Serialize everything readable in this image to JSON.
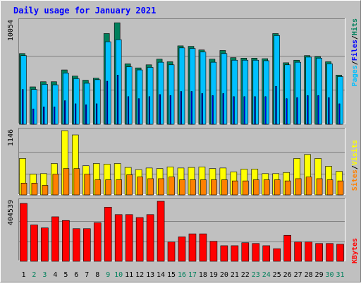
{
  "title": "Daily usage for January 2021",
  "colors": {
    "background": "#c0c0c0",
    "title": "#0000ff",
    "hits": "#00805c",
    "files": "#0000ff",
    "pages": "#00c0ff",
    "visits": "#ffff00",
    "sites": "#ff8000",
    "kbytes": "#ff0000",
    "weekend_label": "#00805c",
    "weekday_label": "#000000"
  },
  "chart_data": [
    {
      "type": "bar",
      "panel": "top",
      "y_max_label": "10054",
      "ylim": [
        0,
        10054
      ],
      "legend": [
        {
          "label": "Pages",
          "color": "#00c0ff"
        },
        {
          "label": "Files",
          "color": "#0000ff"
        },
        {
          "label": "Hits",
          "color": "#00805c"
        }
      ],
      "legend_separator": "/",
      "categories": [
        "1",
        "2",
        "3",
        "4",
        "5",
        "6",
        "7",
        "8",
        "9",
        "10",
        "11",
        "12",
        "13",
        "14",
        "15",
        "16",
        "17",
        "18",
        "19",
        "20",
        "21",
        "22",
        "23",
        "24",
        "25",
        "26",
        "27",
        "28",
        "29",
        "30",
        "31"
      ],
      "series": [
        {
          "name": "Hits",
          "values": [
            6900,
            3650,
            4150,
            4150,
            5300,
            4700,
            4300,
            4500,
            8850,
            9900,
            5900,
            5500,
            5800,
            6350,
            6100,
            7650,
            7600,
            7250,
            6350,
            7200,
            6500,
            6450,
            6450,
            6400,
            8850,
            6000,
            6250,
            6700,
            6600,
            6100,
            4800
          ]
        },
        {
          "name": "Files",
          "values": [
            3400,
            1500,
            1700,
            1700,
            2300,
            2000,
            1900,
            2000,
            4200,
            4800,
            2700,
            2500,
            2700,
            2900,
            2800,
            3200,
            3200,
            3000,
            2800,
            3000,
            2700,
            2700,
            2700,
            2700,
            3700,
            2500,
            2600,
            2800,
            2800,
            2600,
            2000
          ]
        },
        {
          "name": "Pages",
          "values": [
            6700,
            3400,
            3900,
            3850,
            5000,
            4450,
            4000,
            4350,
            8050,
            8250,
            5600,
            5300,
            5550,
            6050,
            5800,
            7450,
            7400,
            7050,
            6050,
            6900,
            6250,
            6250,
            6250,
            6200,
            8650,
            5800,
            6050,
            6550,
            6450,
            5900,
            4650
          ]
        }
      ]
    },
    {
      "type": "bar",
      "panel": "middle",
      "y_max_label": "1146",
      "ylim": [
        0,
        1146
      ],
      "legend": [
        {
          "label": "Sites",
          "color": "#ff8000"
        },
        {
          "label": "Visits",
          "color": "#ffff00"
        }
      ],
      "legend_separator": "/",
      "categories": [
        "1",
        "2",
        "3",
        "4",
        "5",
        "6",
        "7",
        "8",
        "9",
        "10",
        "11",
        "12",
        "13",
        "14",
        "15",
        "16",
        "17",
        "18",
        "19",
        "20",
        "21",
        "22",
        "23",
        "24",
        "25",
        "26",
        "27",
        "28",
        "29",
        "30",
        "31"
      ],
      "series": [
        {
          "name": "Visits",
          "values": [
            650,
            370,
            380,
            560,
            1146,
            1070,
            520,
            560,
            550,
            560,
            490,
            450,
            480,
            470,
            500,
            480,
            490,
            500,
            470,
            480,
            410,
            460,
            460,
            380,
            380,
            400,
            650,
            720,
            650,
            510,
            420
          ]
        },
        {
          "name": "Sites",
          "values": [
            210,
            210,
            170,
            370,
            470,
            470,
            370,
            270,
            270,
            270,
            360,
            320,
            290,
            290,
            320,
            270,
            270,
            270,
            270,
            270,
            250,
            250,
            270,
            270,
            270,
            250,
            290,
            320,
            290,
            270,
            250
          ]
        }
      ]
    },
    {
      "type": "bar",
      "panel": "bottom",
      "y_max_label": "404539",
      "ylim": [
        0,
        404539
      ],
      "legend": [
        {
          "label": "KBytes",
          "color": "#ff0000"
        }
      ],
      "categories": [
        "1",
        "2",
        "3",
        "4",
        "5",
        "6",
        "7",
        "8",
        "9",
        "10",
        "11",
        "12",
        "13",
        "14",
        "15",
        "16",
        "17",
        "18",
        "19",
        "20",
        "21",
        "22",
        "23",
        "24",
        "25",
        "26",
        "27",
        "28",
        "29",
        "30",
        "31"
      ],
      "series": [
        {
          "name": "KBytes",
          "values": [
            390000,
            245000,
            225000,
            300000,
            275000,
            220000,
            220000,
            260000,
            365000,
            315000,
            315000,
            295000,
            315000,
            404539,
            130000,
            165000,
            185000,
            185000,
            135000,
            105000,
            105000,
            125000,
            120000,
            105000,
            85000,
            175000,
            130000,
            130000,
            120000,
            120000,
            115000
          ]
        }
      ]
    }
  ]
}
